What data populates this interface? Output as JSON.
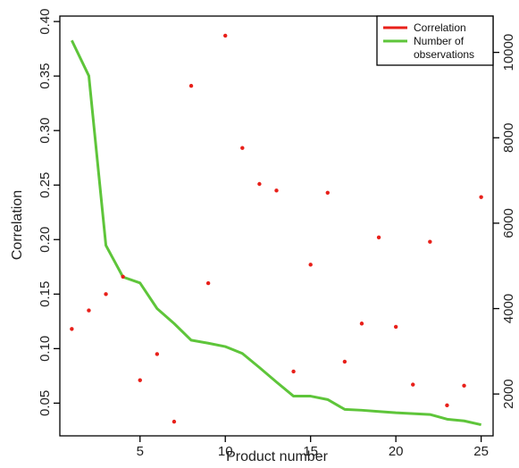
{
  "chart_data": {
    "type": "scatter",
    "xlabel": "Product number",
    "ylabel": "Correlation",
    "xlim": [
      0.3,
      25.7
    ],
    "ylim": [
      0.02,
      0.405
    ],
    "y2lim": [
      1020,
      10850
    ],
    "x_ticks": [
      5,
      10,
      15,
      20,
      25
    ],
    "y_ticks": [
      0.05,
      0.1,
      0.15,
      0.2,
      0.25,
      0.3,
      0.35,
      0.4
    ],
    "y_tick_labels": [
      "0.05",
      "0.10",
      "0.15",
      "0.20",
      "0.25",
      "0.30",
      "0.35",
      "0.40"
    ],
    "y2_ticks": [
      2000,
      4000,
      6000,
      8000,
      10000
    ],
    "grid": false,
    "legend_position": "top-right",
    "series": [
      {
        "name": "Correlation",
        "kind": "points",
        "axis": "left",
        "color": "#e8201a",
        "x": [
          1,
          2,
          3,
          4,
          5,
          6,
          7,
          8,
          9,
          10,
          11,
          12,
          13,
          14,
          15,
          16,
          17,
          18,
          19,
          20,
          21,
          22,
          23,
          24,
          25
        ],
        "values": [
          0.118,
          0.135,
          0.15,
          0.166,
          0.071,
          0.095,
          0.033,
          0.341,
          0.16,
          0.387,
          0.284,
          0.251,
          0.245,
          0.079,
          0.177,
          0.243,
          0.088,
          0.123,
          0.202,
          0.12,
          0.067,
          0.198,
          0.048,
          0.066,
          0.239
        ]
      },
      {
        "name": "Number of observations",
        "legend_lines": [
          "Number of",
          "observations"
        ],
        "kind": "line",
        "axis": "right",
        "color": "#5ec53a",
        "x": [
          1,
          2,
          3,
          4,
          5,
          6,
          7,
          8,
          9,
          10,
          11,
          12,
          13,
          14,
          15,
          16,
          17,
          18,
          19,
          20,
          21,
          22,
          23,
          24,
          25
        ],
        "values": [
          10280,
          9450,
          5480,
          4740,
          4600,
          4000,
          3650,
          3260,
          3190,
          3110,
          2950,
          2620,
          2280,
          1950,
          1950,
          1870,
          1640,
          1620,
          1590,
          1560,
          1540,
          1520,
          1410,
          1370,
          1280
        ]
      }
    ]
  }
}
